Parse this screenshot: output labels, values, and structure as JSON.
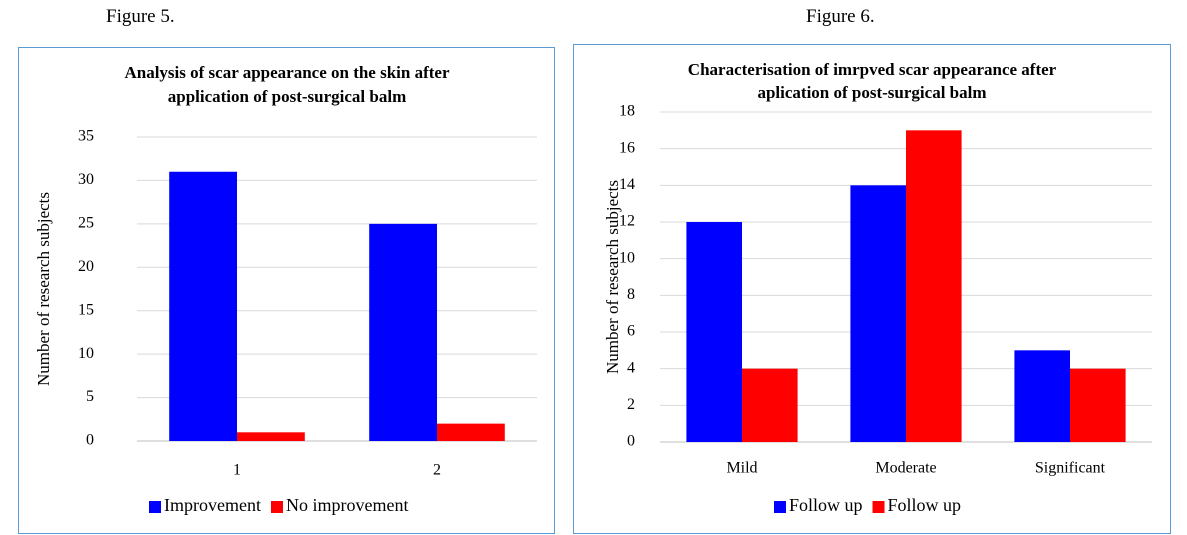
{
  "figures": [
    {
      "caption": "Figure 5."
    },
    {
      "caption": "Figure 6."
    }
  ],
  "chart_data": [
    {
      "type": "bar",
      "title_lines": [
        "Analysis of scar appearance on the skin after",
        "application of post-surgical balm"
      ],
      "xlabel": "",
      "ylabel": "Number of research subjects",
      "categories": [
        "1",
        "2"
      ],
      "series": [
        {
          "name": "Improvement",
          "values": [
            31,
            25
          ],
          "color": "#0000ff"
        },
        {
          "name": "No improvement",
          "values": [
            1,
            2
          ],
          "color": "#ff0000"
        }
      ],
      "ylim": [
        0,
        35
      ],
      "yticks": [
        0,
        5,
        10,
        15,
        20,
        25,
        30,
        35
      ],
      "grid": true,
      "legend": "bottom"
    },
    {
      "type": "bar",
      "title_lines": [
        "Characterisation of imrpved scar appearance after",
        "aplication of post-surgical balm"
      ],
      "xlabel": "",
      "ylabel": "Number of research subjects",
      "categories": [
        "Mild",
        "Moderate",
        "Significant"
      ],
      "series": [
        {
          "name": "Follow up",
          "values": [
            12,
            14,
            5
          ],
          "color": "#0000ff"
        },
        {
          "name": "Follow up",
          "values": [
            4,
            17,
            4
          ],
          "color": "#ff0000"
        }
      ],
      "ylim": [
        0,
        18
      ],
      "yticks": [
        0,
        2,
        4,
        6,
        8,
        10,
        12,
        14,
        16,
        18
      ],
      "grid": true,
      "legend": "bottom"
    }
  ]
}
